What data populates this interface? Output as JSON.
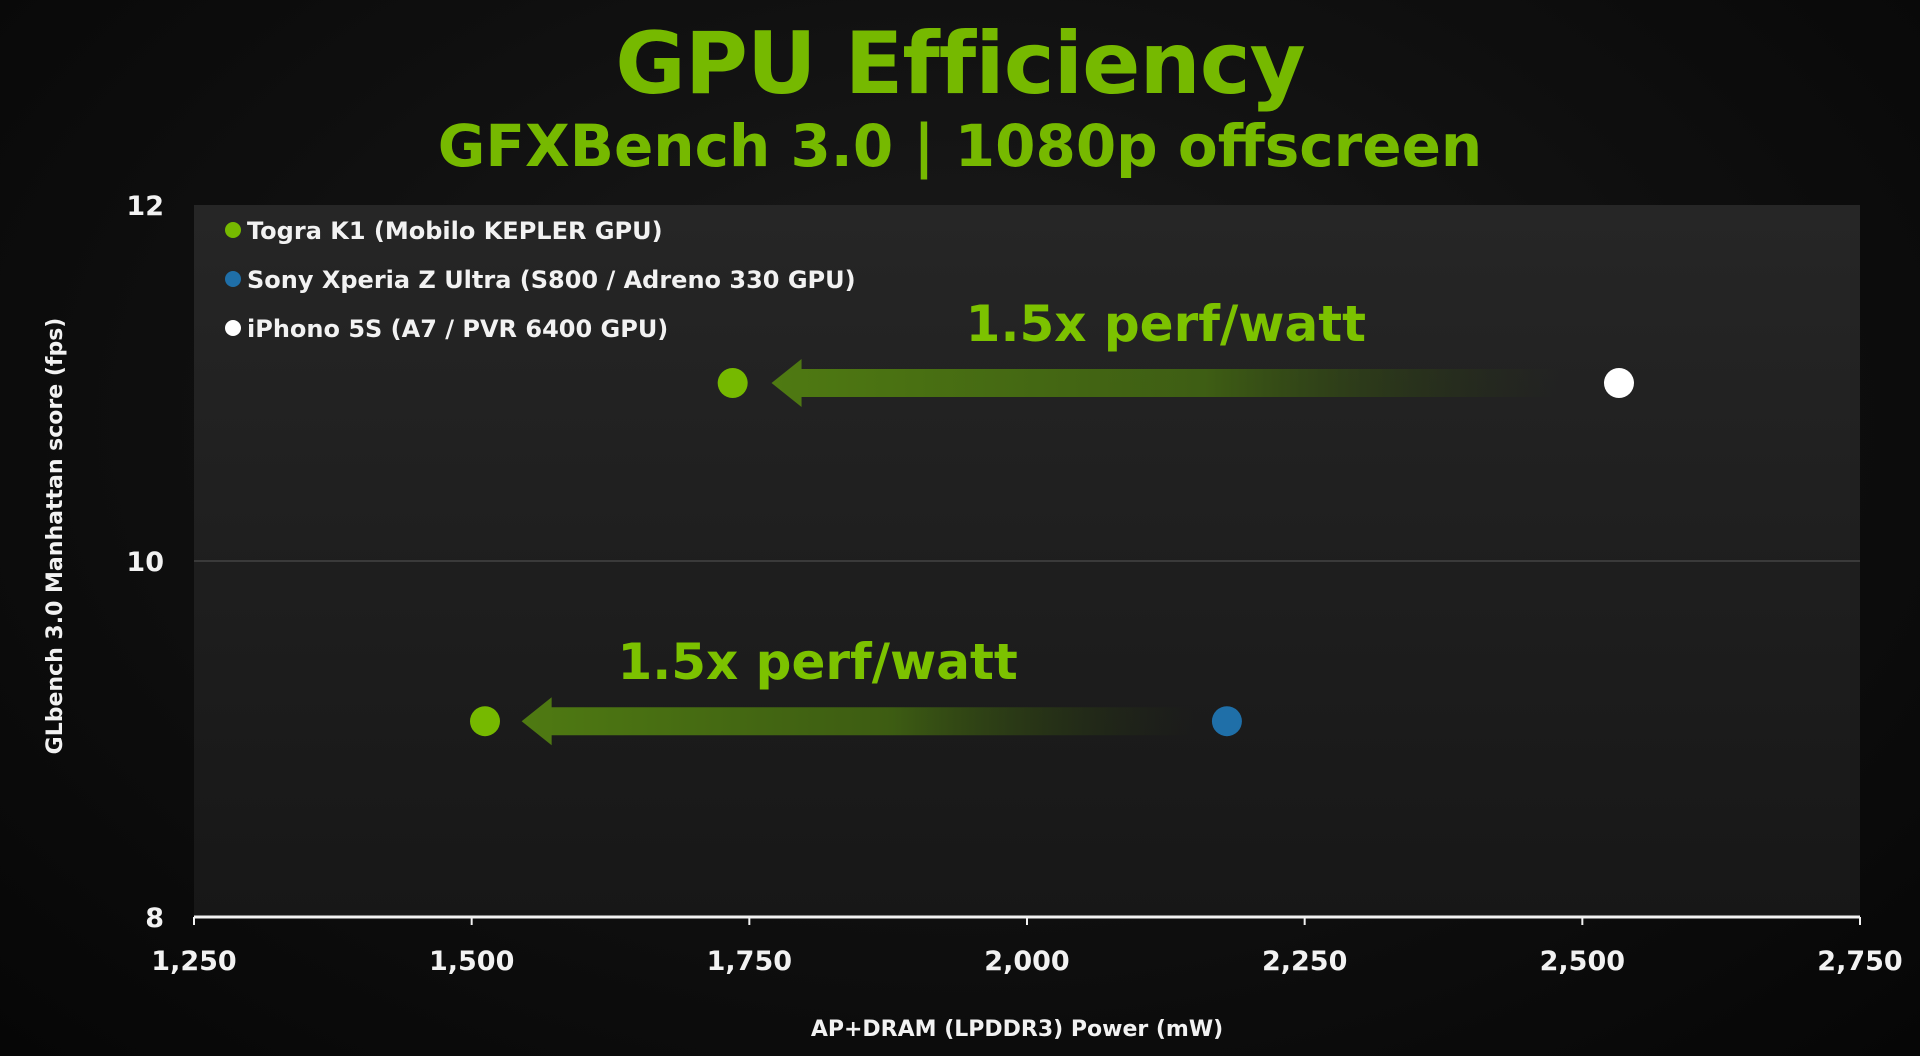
{
  "slide": {
    "title": "GPU Efficiency",
    "subtitle": "GFXBench 3.0 | 1080p offscreen"
  },
  "colors": {
    "accent": "#76b900",
    "tegra": "#76b900",
    "sony": "#1f6fa8",
    "iphone": "#ffffff",
    "background": "#0d0d0d"
  },
  "chart_data": {
    "type": "scatter",
    "xlabel": "AP+DRAM (LPDDR3) Power (mW)",
    "ylabel": "GLbench 3.0 Manhattan score (fps)",
    "xlim": [
      1250,
      2750
    ],
    "ylim": [
      8,
      12
    ],
    "x_ticks": [
      "1,250",
      "1,500",
      "1,750",
      "2,000",
      "2,250",
      "2,500",
      "2,750"
    ],
    "x_tick_values": [
      1250,
      1500,
      1750,
      2000,
      2250,
      2500,
      2750
    ],
    "y_ticks": [
      "8",
      "10",
      "12"
    ],
    "y_tick_values": [
      8,
      10,
      12
    ],
    "grid": true,
    "legend_position": "top-left",
    "series": [
      {
        "name": "Togra K1 (Mobilo KEPLER GPU)",
        "color": "#76b900",
        "points": [
          {
            "x": 1735,
            "y": 11.0
          },
          {
            "x": 1512,
            "y": 9.1
          }
        ]
      },
      {
        "name": "Sony Xperia Z Ultra (S800 / Adreno 330 GPU)",
        "color": "#1f6fa8",
        "points": [
          {
            "x": 2180,
            "y": 9.1
          }
        ]
      },
      {
        "name": "iPhono 5S (A7 / PVR 6400 GPU)",
        "color": "#ffffff",
        "points": [
          {
            "x": 2533,
            "y": 11.0
          }
        ]
      }
    ],
    "annotations": [
      {
        "text": "1.5x perf/watt",
        "from": {
          "x": 2480,
          "y": 11.0
        },
        "to": {
          "x": 1770,
          "y": 11.0
        }
      },
      {
        "text": "1.5x perf/watt",
        "from": {
          "x": 2150,
          "y": 9.1
        },
        "to": {
          "x": 1545,
          "y": 9.1
        }
      }
    ]
  }
}
